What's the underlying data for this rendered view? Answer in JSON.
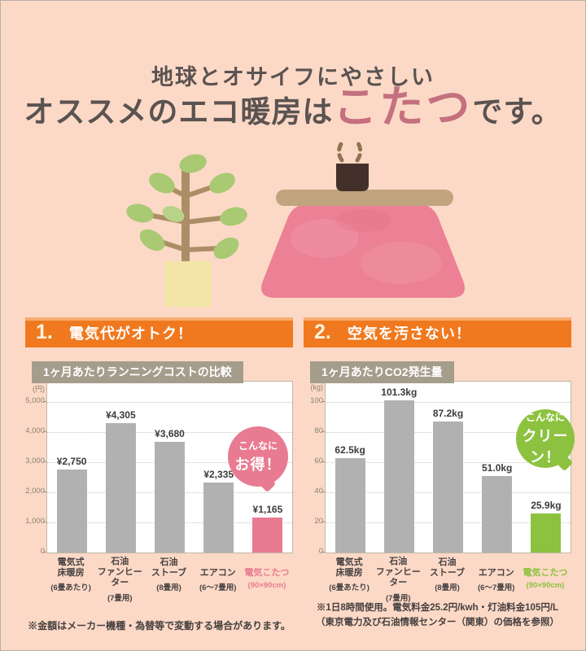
{
  "colors": {
    "background": "#fcd9c6",
    "banner_orange": "#f0791f",
    "tab_taupe": "#a59d8b",
    "bar_gray": "#b1b1b1",
    "accent_pink": "#e87b91",
    "accent_green": "#8cc23f",
    "title_highlight_rose": "#c4707f",
    "text_dark": "#5a5351"
  },
  "header": {
    "line1": "地球とオサイフにやさしい",
    "line2_prefix": "オススメのエコ暖房は",
    "line2_highlight": "こたつ",
    "line2_suffix": "です。"
  },
  "illustration": {
    "items": [
      "potted-plant",
      "kotatsu-blanket",
      "kotatsu-tabletop",
      "teacup",
      "steam"
    ]
  },
  "sections": [
    {
      "number": "1.",
      "heading": "電気代がオトク！",
      "note_lines": [
        "※金額はメーカー機種・為替等で変動する場合があります。"
      ]
    },
    {
      "number": "2.",
      "heading": "空気を汚さない！",
      "note_lines": [
        "※1日8時間使用。電気料金25.2円/kwh・灯油料金105円/L",
        "（東京電力及び石油情報センター（関東）の価格を参照）"
      ]
    }
  ],
  "chart_data": [
    {
      "type": "bar",
      "title": "1ヶ月あたりランニングコストの比較",
      "unit_label": "(円)",
      "ylabel": "円",
      "ylim": [
        0,
        5000
      ],
      "yticks": [
        0,
        1000,
        2000,
        3000,
        4000,
        5000
      ],
      "ytick_labels": [
        "0",
        "1,000",
        "2,000",
        "3,000",
        "4,000",
        "5,000"
      ],
      "grid": "horizontal-dotted",
      "legend": "none",
      "categories": [
        {
          "name": "電気式\n床暖房",
          "sub": "(6畳あたり)"
        },
        {
          "name": "石油\nファンヒーター",
          "sub": "(7畳用)"
        },
        {
          "name": "石油\nストーブ",
          "sub": "(8畳用)"
        },
        {
          "name": "エアコン",
          "sub": "(6～7畳用)"
        },
        {
          "name": "電気こたつ",
          "sub": "(90×90cm)"
        }
      ],
      "values": [
        2750,
        4305,
        3680,
        2335,
        1165
      ],
      "value_labels": [
        "¥2,750",
        "¥4,305",
        "¥3,680",
        "¥2,335",
        "¥1,165"
      ],
      "bar_color": "#b1b1b1",
      "highlight_index": 4,
      "highlight_color": "#e87b91",
      "annotation": {
        "line1": "こんなに",
        "line2": "お得！",
        "color": "#e87b91"
      }
    },
    {
      "type": "bar",
      "title": "1ヶ月あたりCO2発生量",
      "unit_label": "(kg)",
      "ylabel": "kg",
      "ylim": [
        0,
        100
      ],
      "yticks": [
        0,
        20,
        40,
        60,
        80,
        100
      ],
      "ytick_labels": [
        "0",
        "20",
        "40",
        "60",
        "80",
        "100"
      ],
      "grid": "horizontal-dotted",
      "legend": "none",
      "categories": [
        {
          "name": "電気式\n床暖房",
          "sub": "(6畳あたり)"
        },
        {
          "name": "石油\nファンヒーター",
          "sub": "(7畳用)"
        },
        {
          "name": "石油\nストーブ",
          "sub": "(8畳用)"
        },
        {
          "name": "エアコン",
          "sub": "(6～7畳用)"
        },
        {
          "name": "電気こたつ",
          "sub": "(90×90cm)"
        }
      ],
      "values": [
        62.5,
        101.3,
        87.2,
        51.0,
        25.9
      ],
      "value_labels": [
        "62.5kg",
        "101.3kg",
        "87.2kg",
        "51.0kg",
        "25.9kg"
      ],
      "bar_color": "#b1b1b1",
      "highlight_index": 4,
      "highlight_color": "#8cc23f",
      "annotation": {
        "line1": "こんなに",
        "line2": "クリーン！",
        "color": "#8cc23f"
      }
    }
  ]
}
